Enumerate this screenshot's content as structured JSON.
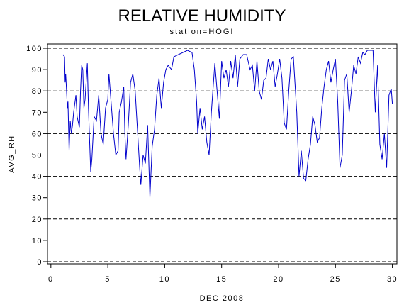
{
  "chart_data": {
    "type": "line",
    "title": "RELATIVE HUMIDITY",
    "subtitle": "station=HOGI",
    "x_label": "DEC 2008",
    "y_label": "AVG_RH",
    "xlim": [
      -0.3,
      30.4
    ],
    "ylim": [
      -1,
      102
    ],
    "xticks": [
      0,
      5,
      10,
      15,
      20,
      25,
      30
    ],
    "yticks": [
      0,
      10,
      20,
      30,
      40,
      50,
      60,
      70,
      80,
      90,
      100
    ],
    "reference_lines": [
      0,
      20,
      40,
      60,
      80,
      100
    ],
    "series": [
      {
        "name": "AVG_RH",
        "color": "#0000cc",
        "x": [
          1.06,
          1.2,
          1.25,
          1.3,
          1.45,
          1.5,
          1.6,
          1.7,
          1.8,
          1.9,
          2.0,
          2.2,
          2.3,
          2.5,
          2.6,
          2.7,
          2.8,
          2.9,
          3.0,
          3.2,
          3.3,
          3.5,
          3.6,
          3.8,
          4.0,
          4.2,
          4.4,
          4.6,
          4.8,
          5.0,
          5.1,
          5.3,
          5.5,
          5.7,
          5.9,
          6.0,
          6.2,
          6.4,
          6.5,
          6.6,
          6.8,
          7.0,
          7.2,
          7.4,
          7.6,
          7.8,
          7.9,
          8.1,
          8.3,
          8.5,
          8.7,
          8.9,
          9.1,
          9.3,
          9.5,
          9.7,
          9.9,
          10.1,
          10.3,
          10.6,
          10.8,
          11.2,
          11.6,
          12.0,
          12.4,
          12.6,
          12.8,
          12.9,
          13.1,
          13.3,
          13.5,
          13.7,
          13.9,
          14.1,
          14.4,
          14.6,
          14.8,
          15.0,
          15.2,
          15.4,
          15.6,
          15.8,
          16.0,
          16.2,
          16.4,
          16.6,
          16.9,
          17.2,
          17.5,
          17.7,
          17.9,
          18.1,
          18.3,
          18.5,
          18.7,
          18.9,
          19.1,
          19.3,
          19.5,
          19.7,
          19.9,
          20.1,
          20.3,
          20.5,
          20.7,
          20.9,
          21.1,
          21.3,
          21.6,
          21.8,
          22.0,
          22.2,
          22.4,
          22.6,
          22.8,
          23.0,
          23.2,
          23.4,
          23.6,
          23.8,
          24.0,
          24.2,
          24.4,
          24.6,
          24.8,
          25.0,
          25.2,
          25.4,
          25.6,
          25.8,
          26.0,
          26.2,
          26.4,
          26.6,
          26.8,
          27.0,
          27.2,
          27.4,
          27.6,
          27.8,
          28.1,
          28.3,
          28.5,
          28.7,
          28.9,
          29.1,
          29.3,
          29.5,
          29.7,
          29.9,
          30.0
        ],
        "values": [
          97,
          96,
          84,
          88,
          72,
          75,
          52,
          66,
          60,
          64,
          70,
          78,
          68,
          63,
          80,
          92,
          90,
          72,
          76,
          93,
          72,
          42,
          48,
          68,
          66,
          78,
          60,
          55,
          72,
          76,
          88,
          74,
          60,
          50,
          52,
          70,
          75,
          82,
          60,
          48,
          64,
          84,
          88,
          80,
          62,
          44,
          36,
          50,
          46,
          64,
          30,
          54,
          62,
          78,
          86,
          72,
          84,
          90,
          92,
          90,
          96,
          97,
          98,
          99,
          98,
          90,
          75,
          60,
          72,
          62,
          68,
          56,
          50,
          70,
          93,
          80,
          67,
          94,
          86,
          90,
          82,
          94,
          86,
          97,
          82,
          95,
          97,
          97,
          90,
          92,
          80,
          94,
          80,
          76,
          85,
          86,
          95,
          90,
          94,
          82,
          88,
          95,
          86,
          65,
          62,
          80,
          95,
          96,
          70,
          40,
          52,
          39,
          38,
          48,
          55,
          68,
          64,
          56,
          58,
          72,
          82,
          90,
          94,
          84,
          90,
          95,
          75,
          44,
          50,
          85,
          88,
          70,
          80,
          92,
          88,
          96,
          93,
          98,
          97,
          99,
          99,
          99,
          70,
          92,
          55,
          48,
          60,
          44,
          78,
          81,
          74
        ]
      }
    ]
  }
}
